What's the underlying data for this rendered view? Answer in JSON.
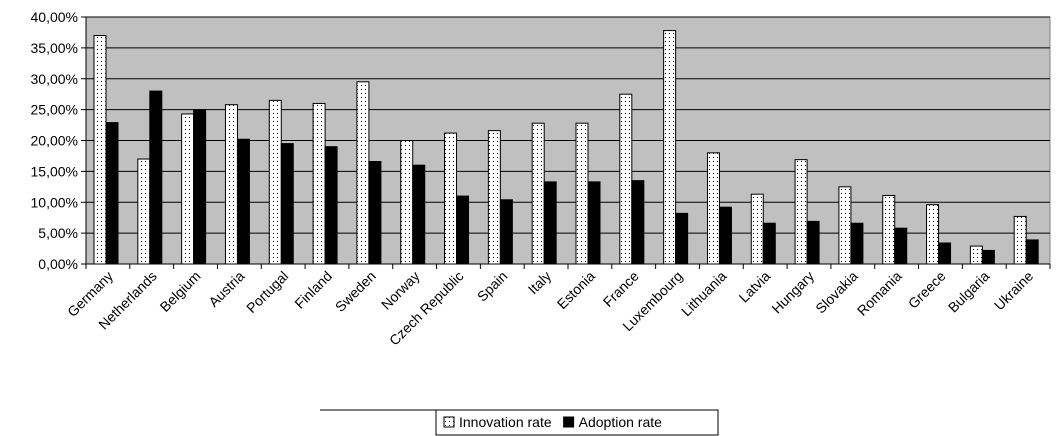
{
  "chart_data": {
    "type": "bar",
    "categories": [
      "Germany",
      "Netherlands",
      "Belgium",
      "Austria",
      "Portugal",
      "Finland",
      "Sweden",
      "Norway",
      "Czech Republic",
      "Spain",
      "Italy",
      "Estonia",
      "France",
      "Luxembourg",
      "Lithuania",
      "Latvia",
      "Hungary",
      "Slovakia",
      "Romania",
      "Greece",
      "Bulgaria",
      "Ukraine"
    ],
    "series": [
      {
        "name": "Innovation rate",
        "values": [
          37.0,
          17.0,
          24.3,
          25.8,
          26.5,
          26.0,
          29.5,
          20.0,
          21.2,
          21.6,
          22.8,
          22.8,
          27.5,
          37.8,
          18.0,
          11.3,
          16.9,
          12.5,
          11.1,
          9.6,
          2.9,
          7.7
        ]
      },
      {
        "name": "Adoption rate",
        "values": [
          22.9,
          28.0,
          25.0,
          20.2,
          19.5,
          19.0,
          16.6,
          16.0,
          11.0,
          10.4,
          13.3,
          13.3,
          13.5,
          8.2,
          9.2,
          6.6,
          6.9,
          6.6,
          5.8,
          3.4,
          2.2,
          3.9
        ]
      }
    ],
    "ylim": [
      0,
      40
    ],
    "yticks": [
      "0,00%",
      "5,00%",
      "10,00%",
      "15,00%",
      "20,00%",
      "25,00%",
      "30,00%",
      "35,00%",
      "40,00%"
    ],
    "grid": true,
    "legend_position": "bottom",
    "colors": {
      "plot_bg": "#c0c0c0",
      "gridline": "#000000",
      "innovation_fill": "#ffffff",
      "adoption_fill": "#000000"
    }
  }
}
